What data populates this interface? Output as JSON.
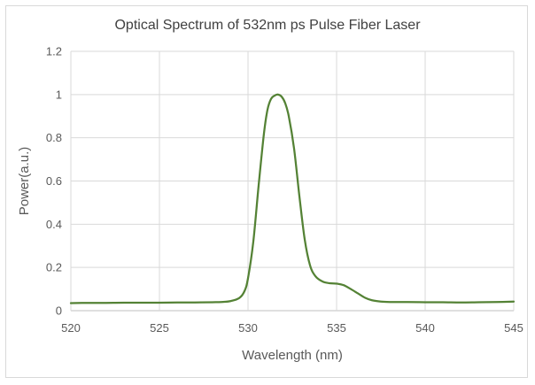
{
  "chart_data": {
    "type": "line",
    "title": "Optical Spectrum of 532nm ps Pulse Fiber Laser",
    "xlabel": "Wavelength (nm)",
    "ylabel": "Power(a.u.)",
    "xlim": [
      520,
      545
    ],
    "ylim": [
      0,
      1.2
    ],
    "xticks": [
      520,
      525,
      530,
      535,
      540,
      545
    ],
    "yticks": [
      0,
      0.2,
      0.4,
      0.6,
      0.8,
      1,
      1.2
    ],
    "grid": true,
    "legend": "none",
    "line_color": "#548235",
    "series": [
      {
        "x": [
          520,
          521,
          522,
          523,
          524,
          525,
          526,
          527,
          528,
          528.5,
          529,
          529.5,
          529.8,
          530.0,
          530.3,
          530.6,
          530.9,
          531.1,
          531.3,
          531.5,
          531.7,
          531.9,
          532.1,
          532.3,
          532.6,
          532.9,
          533.2,
          533.5,
          533.8,
          534.2,
          534.6,
          535.0,
          535.4,
          535.8,
          536.2,
          536.6,
          537.0,
          537.5,
          538.0,
          538.5,
          539.0,
          540.0,
          541.0,
          542.0,
          543.0,
          544.0,
          545.0
        ],
        "y": [
          0.035,
          0.036,
          0.036,
          0.037,
          0.037,
          0.037,
          0.038,
          0.038,
          0.039,
          0.04,
          0.044,
          0.058,
          0.09,
          0.15,
          0.32,
          0.58,
          0.82,
          0.93,
          0.98,
          0.995,
          1.0,
          0.99,
          0.96,
          0.9,
          0.75,
          0.53,
          0.33,
          0.21,
          0.16,
          0.135,
          0.127,
          0.125,
          0.118,
          0.1,
          0.08,
          0.06,
          0.048,
          0.042,
          0.04,
          0.04,
          0.04,
          0.039,
          0.039,
          0.038,
          0.039,
          0.04,
          0.042
        ]
      }
    ]
  }
}
